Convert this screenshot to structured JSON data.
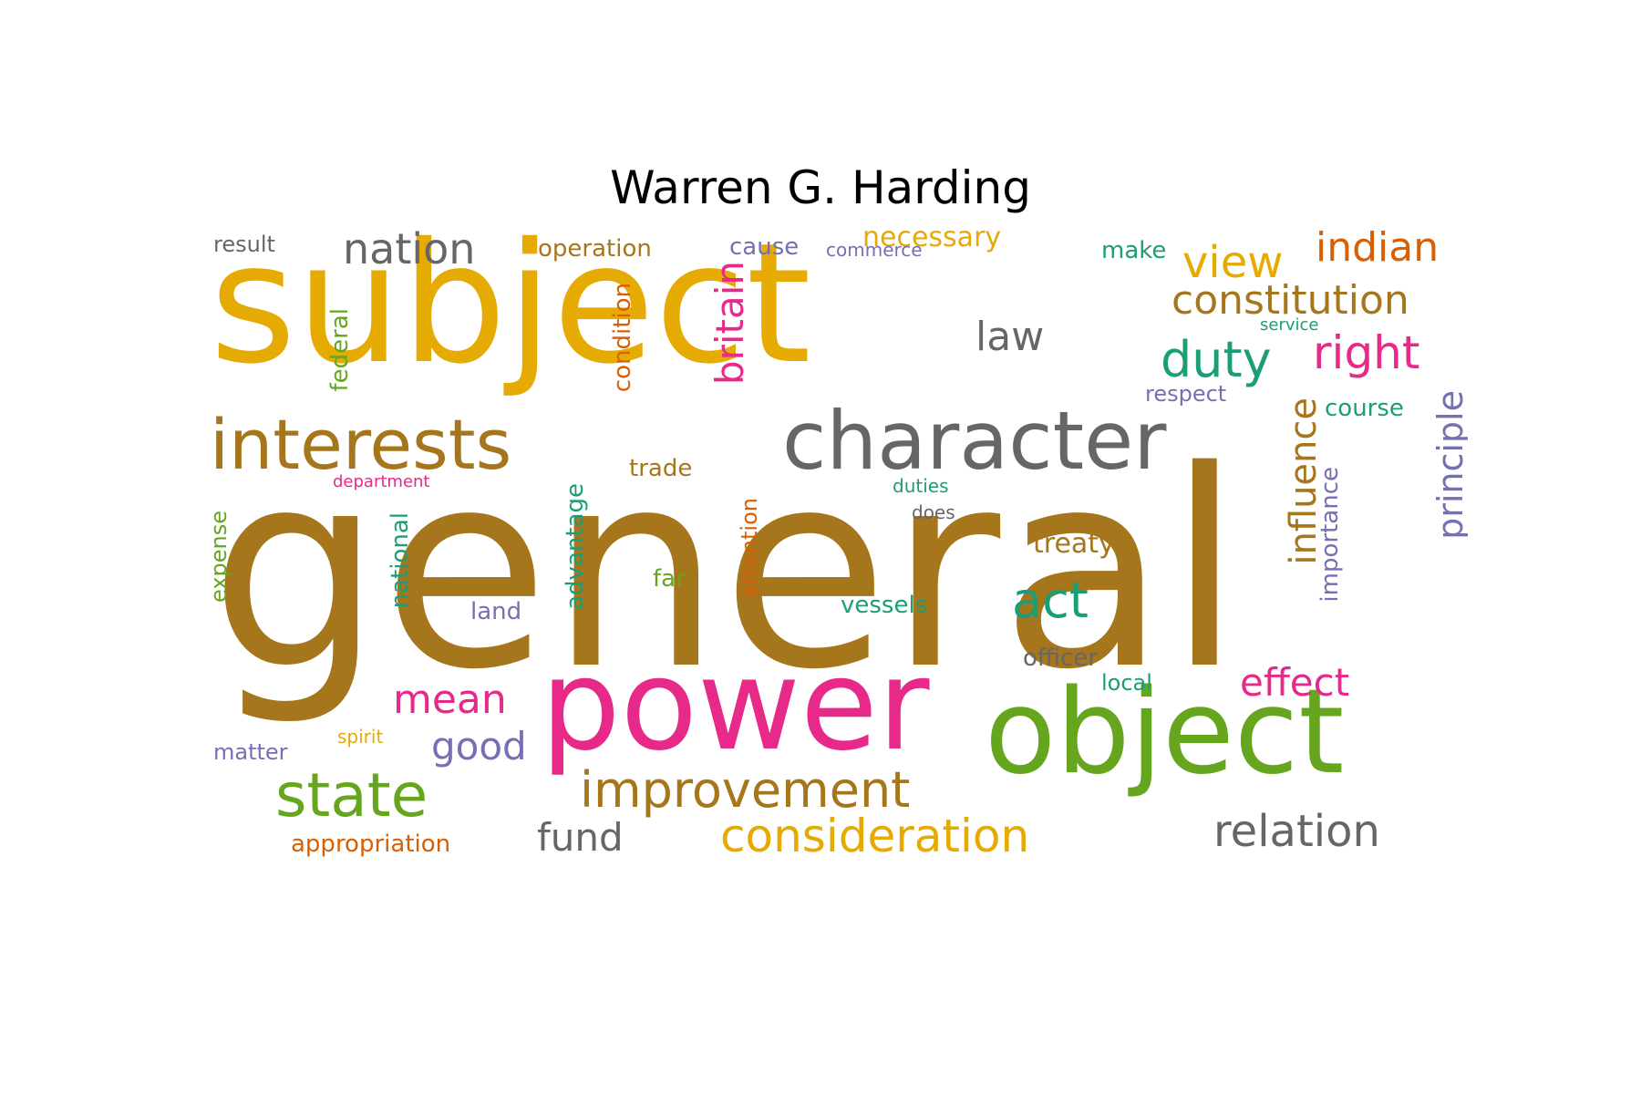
{
  "title": "Warren G. Harding",
  "palette": [
    "#E6AB02",
    "#A6761D",
    "#666666",
    "#E7298A",
    "#66A61E",
    "#1B9E77",
    "#D95F02",
    "#7570B3"
  ],
  "words": [
    {
      "text": "general",
      "color": "#A6761D"
    },
    {
      "text": "subject",
      "color": "#E6AB02"
    },
    {
      "text": "power",
      "color": "#E7298A"
    },
    {
      "text": "object",
      "color": "#66A61E"
    },
    {
      "text": "character",
      "color": "#666666"
    },
    {
      "text": "interests",
      "color": "#A6761D"
    },
    {
      "text": "state",
      "color": "#66A61E"
    },
    {
      "text": "improvement",
      "color": "#A6761D"
    },
    {
      "text": "consideration",
      "color": "#E6AB02"
    },
    {
      "text": "relation",
      "color": "#666666"
    },
    {
      "text": "constitution",
      "color": "#A6761D"
    },
    {
      "text": "duty",
      "color": "#1B9E77"
    },
    {
      "text": "right",
      "color": "#E7298A"
    },
    {
      "text": "view",
      "color": "#E6AB02"
    },
    {
      "text": "indian",
      "color": "#D95F02"
    },
    {
      "text": "nation",
      "color": "#666666"
    },
    {
      "text": "law",
      "color": "#666666"
    },
    {
      "text": "act",
      "color": "#1B9E77"
    },
    {
      "text": "effect",
      "color": "#E7298A"
    },
    {
      "text": "mean",
      "color": "#E7298A"
    },
    {
      "text": "good",
      "color": "#7570B3"
    },
    {
      "text": "fund",
      "color": "#666666"
    },
    {
      "text": "britain",
      "color": "#E7298A"
    },
    {
      "text": "influence",
      "color": "#A6761D"
    },
    {
      "text": "principle",
      "color": "#7570B3"
    },
    {
      "text": "necessary",
      "color": "#E6AB02"
    },
    {
      "text": "operation",
      "color": "#A6761D"
    },
    {
      "text": "result",
      "color": "#666666"
    },
    {
      "text": "cause",
      "color": "#7570B3"
    },
    {
      "text": "commerce",
      "color": "#7570B3"
    },
    {
      "text": "make",
      "color": "#1B9E77"
    },
    {
      "text": "treaty",
      "color": "#A6761D"
    },
    {
      "text": "vessels",
      "color": "#1B9E77"
    },
    {
      "text": "appropriation",
      "color": "#D95F02"
    },
    {
      "text": "officer",
      "color": "#666666"
    },
    {
      "text": "trade",
      "color": "#A6761D"
    },
    {
      "text": "course",
      "color": "#1B9E77"
    },
    {
      "text": "respect",
      "color": "#7570B3"
    },
    {
      "text": "duties",
      "color": "#1B9E77"
    },
    {
      "text": "does",
      "color": "#666666"
    },
    {
      "text": "federal",
      "color": "#66A61E"
    },
    {
      "text": "condition",
      "color": "#D95F02"
    },
    {
      "text": "advantage",
      "color": "#1B9E77"
    },
    {
      "text": "attention",
      "color": "#D95F02"
    },
    {
      "text": "national",
      "color": "#1B9E77"
    },
    {
      "text": "expense",
      "color": "#66A61E"
    },
    {
      "text": "importance",
      "color": "#7570B3"
    },
    {
      "text": "matter",
      "color": "#7570B3"
    },
    {
      "text": "spirit",
      "color": "#E6AB02"
    },
    {
      "text": "far",
      "color": "#66A61E"
    },
    {
      "text": "land",
      "color": "#7570B3"
    },
    {
      "text": "local",
      "color": "#1B9E77"
    },
    {
      "text": "department",
      "color": "#E7298A"
    },
    {
      "text": "service",
      "color": "#1B9E77"
    }
  ]
}
